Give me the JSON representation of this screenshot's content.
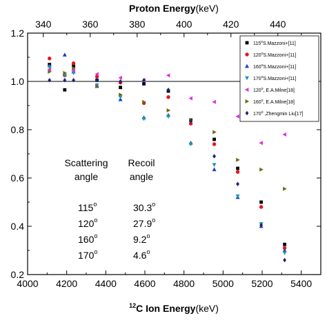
{
  "chart_data": {
    "type": "scatter",
    "x_bottom": {
      "label_sup": "12",
      "label_main": "C Ion Energy",
      "label_unit": "(keV)",
      "range": [
        4000,
        5500
      ],
      "ticks": [
        4000,
        4200,
        4400,
        4600,
        4800,
        5000,
        5200,
        5400
      ]
    },
    "x_top": {
      "label_main": "Proton  Energy",
      "label_unit": "(keV)",
      "range": [
        333.3,
        458.3
      ],
      "ticks": [
        340,
        360,
        380,
        400,
        420,
        440
      ]
    },
    "y": {
      "range": [
        0.2,
        1.2
      ],
      "ticks": [
        "0.2",
        "0.4",
        "0.6",
        "0.8",
        "1.0",
        "1.2"
      ],
      "ref_line": 1.0
    },
    "legend_position": "top-right",
    "series": [
      {
        "name": "S.Mazzoni+[11]",
        "angle": "115",
        "prefix": "",
        "marker": "square",
        "color": "#000000",
        "points": [
          [
            4112,
            1.07
          ],
          [
            4190,
            0.965
          ],
          [
            4235,
            1.065
          ],
          [
            4355,
            1.005
          ],
          [
            4475,
            0.975
          ],
          [
            4595,
            0.99
          ],
          [
            4720,
            0.96
          ],
          [
            4835,
            0.84
          ],
          [
            4955,
            0.76
          ],
          [
            5075,
            0.64
          ],
          [
            5195,
            0.5
          ],
          [
            5315,
            0.325
          ]
        ]
      },
      {
        "name": "S.Mazzoni+[11]",
        "angle": "120",
        "prefix": "",
        "marker": "circle",
        "color": "#e8141e",
        "points": [
          [
            4112,
            1.095
          ],
          [
            4190,
            1.025
          ],
          [
            4235,
            1.075
          ],
          [
            4355,
            1.02
          ],
          [
            4475,
            0.995
          ],
          [
            4595,
            0.91
          ],
          [
            4720,
            0.935
          ],
          [
            4835,
            0.825
          ],
          [
            4955,
            0.74
          ],
          [
            5075,
            0.625
          ],
          [
            5195,
            0.48
          ],
          [
            5315,
            0.31
          ]
        ]
      },
      {
        "name": "S.Mazzoni+[11]",
        "angle": "160",
        "prefix": "",
        "marker": "triangle-up",
        "color": "#1e3ccd",
        "points": [
          [
            4112,
            1.065
          ],
          [
            4190,
            1.11
          ],
          [
            4235,
            1.04
          ],
          [
            4355,
            0.98
          ],
          [
            4475,
            0.925
          ],
          [
            4595,
            0.85
          ],
          [
            4720,
            0.86
          ],
          [
            4835,
            0.745
          ],
          [
            4955,
            0.635
          ],
          [
            5075,
            0.52
          ],
          [
            5195,
            0.4
          ],
          [
            5315,
            0.3
          ]
        ]
      },
      {
        "name": "S.Mazzoni+[11]",
        "angle": "170",
        "prefix": "",
        "marker": "triangle-down",
        "color": "#1a9aa8",
        "points": [
          [
            4112,
            1.06
          ],
          [
            4190,
            1.025
          ],
          [
            4235,
            1.035
          ],
          [
            4355,
            0.985
          ],
          [
            4475,
            0.935
          ],
          [
            4595,
            0.845
          ],
          [
            4720,
            0.855
          ],
          [
            4835,
            0.74
          ],
          [
            4955,
            0.655
          ],
          [
            5075,
            0.525
          ],
          [
            5195,
            0.41
          ],
          [
            5315,
            0.29
          ]
        ]
      },
      {
        "name": "E.A.Milne[18]",
        "angle": "120",
        "prefix": ", ",
        "marker": "triangle-left",
        "color": "#e030e0",
        "points": [
          [
            4112,
            1.05
          ],
          [
            4235,
            1.045
          ],
          [
            4355,
            1.03
          ],
          [
            4475,
            1.015
          ],
          [
            4595,
            1.005
          ],
          [
            4720,
            1.025
          ],
          [
            4835,
            0.93
          ],
          [
            4955,
            0.915
          ],
          [
            5075,
            0.855
          ],
          [
            5195,
            0.745
          ],
          [
            5315,
            0.78
          ]
        ]
      },
      {
        "name": "E.A.Milne[18]",
        "angle": "160",
        "prefix": ", ",
        "marker": "triangle-right",
        "color": "#6b6b10",
        "points": [
          [
            4112,
            1.04
          ],
          [
            4190,
            1.035
          ],
          [
            4235,
            1.055
          ],
          [
            4355,
            0.98
          ],
          [
            4475,
            0.945
          ],
          [
            4595,
            0.915
          ],
          [
            4720,
            0.88
          ],
          [
            4835,
            0.84
          ],
          [
            4955,
            0.79
          ],
          [
            5075,
            0.675
          ],
          [
            5195,
            0.635
          ],
          [
            5315,
            0.555
          ]
        ]
      },
      {
        "name": "Zhengmin Liu[17]",
        "angle": "170",
        "prefix": " ,",
        "marker": "diamond",
        "color": "#1a2470",
        "points": [
          [
            4112,
            1.005
          ],
          [
            4190,
            1.005
          ],
          [
            4235,
            1.005
          ],
          [
            4355,
            1.005
          ],
          [
            4475,
            1.0
          ],
          [
            4595,
            1.005
          ],
          [
            4720,
            0.965
          ],
          [
            4835,
            0.835
          ],
          [
            4955,
            0.69
          ],
          [
            5075,
            0.575
          ],
          [
            5195,
            0.405
          ],
          [
            5315,
            0.26
          ]
        ]
      }
    ],
    "annotation_table": {
      "headers": [
        [
          "Scattering",
          "angle"
        ],
        [
          "Recoil",
          "angle"
        ]
      ],
      "rows": [
        [
          "115",
          "30.3"
        ],
        [
          "120",
          "27.9"
        ],
        [
          "160",
          "9.2"
        ],
        [
          "170",
          "4.6"
        ]
      ],
      "degree_mark": "o"
    }
  }
}
